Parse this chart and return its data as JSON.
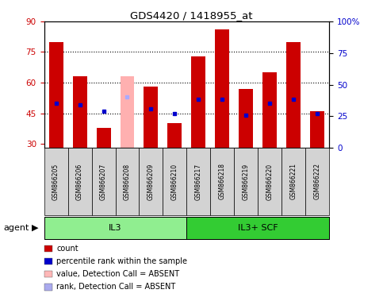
{
  "title": "GDS4420 / 1418955_at",
  "samples": [
    "GSM866205",
    "GSM866206",
    "GSM866207",
    "GSM866208",
    "GSM866209",
    "GSM866210",
    "GSM866217",
    "GSM866218",
    "GSM866219",
    "GSM866220",
    "GSM866221",
    "GSM866222"
  ],
  "bar_values": [
    80,
    63,
    38,
    63,
    58,
    40,
    73,
    86,
    57,
    65,
    80,
    46
  ],
  "bar_colors": [
    "#cc0000",
    "#cc0000",
    "#cc0000",
    "#ffb0b0",
    "#cc0000",
    "#cc0000",
    "#cc0000",
    "#cc0000",
    "#cc0000",
    "#cc0000",
    "#cc0000",
    "#cc0000"
  ],
  "rank_values": [
    50,
    49,
    46,
    53,
    47,
    45,
    52,
    52,
    44,
    50,
    52,
    45
  ],
  "rank_colors": [
    "#0000cc",
    "#0000cc",
    "#0000cc",
    "#aaaaff",
    "#0000cc",
    "#0000cc",
    "#0000cc",
    "#0000cc",
    "#0000cc",
    "#0000cc",
    "#0000cc",
    "#0000cc"
  ],
  "groups": [
    {
      "label": "IL3",
      "start": 0,
      "end": 6,
      "color": "#90ee90"
    },
    {
      "label": "IL3+ SCF",
      "start": 6,
      "end": 12,
      "color": "#33cc33"
    }
  ],
  "ylim_left": [
    28,
    90
  ],
  "ylim_right": [
    0,
    100
  ],
  "yticks_left": [
    30,
    45,
    60,
    75,
    90
  ],
  "yticks_right": [
    0,
    25,
    50,
    75,
    100
  ],
  "ytick_labels_right": [
    "0",
    "25",
    "50",
    "75",
    "100%"
  ],
  "dotted_lines": [
    45,
    60,
    75
  ],
  "legend_items": [
    {
      "label": "count",
      "color": "#cc0000"
    },
    {
      "label": "percentile rank within the sample",
      "color": "#0000cc"
    },
    {
      "label": "value, Detection Call = ABSENT",
      "color": "#ffb8b8"
    },
    {
      "label": "rank, Detection Call = ABSENT",
      "color": "#aaaaee"
    }
  ]
}
